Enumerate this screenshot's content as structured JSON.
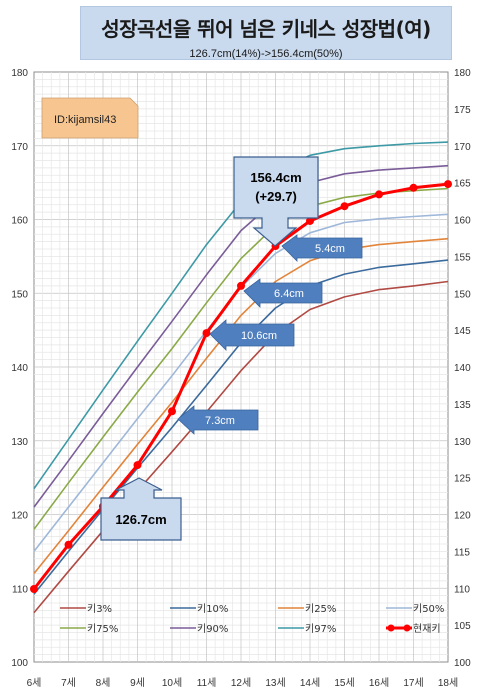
{
  "title": "성장곡선을 뛰어 넘은 키네스 성장법(여)",
  "subtitle": "126.7cm(14%)->156.4cm(50%)",
  "id_label": "ID:kijamsil43",
  "start_label": "126.7cm",
  "end_label_line1": "156.4cm",
  "end_label_line2": "(+29.7)",
  "gains": [
    "7.3cm",
    "10.6cm",
    "6.4cm",
    "5.4cm"
  ],
  "colors": {
    "p3": "#b04a43",
    "p10": "#3b6a9c",
    "p25": "#e2843a",
    "p50": "#9fb7d9",
    "p75": "#8aaa48",
    "p90": "#7a5c98",
    "p97": "#3c99a5",
    "current": "#ff0000"
  },
  "chart_data": {
    "type": "line",
    "categories": [
      "6세",
      "7세",
      "8세",
      "9세",
      "10세",
      "11세",
      "12세",
      "13세",
      "14세",
      "15세",
      "16세",
      "17세",
      "18세"
    ],
    "ylim": [
      100,
      180
    ],
    "y_ticks": [
      "100",
      "110",
      "120",
      "130",
      "140",
      "150",
      "160",
      "170",
      "180"
    ],
    "y2_ticks": [
      "100",
      "105",
      "110",
      "115",
      "120",
      "125",
      "130",
      "135",
      "140",
      "145",
      "150",
      "155",
      "160",
      "165",
      "170",
      "175",
      "180"
    ],
    "grid": true,
    "legend_position": "bottom",
    "series": [
      {
        "name": "키3%",
        "values": [
          106.7,
          112.3,
          117.8,
          123.2,
          128.5,
          133.9,
          139.5,
          144.5,
          147.8,
          149.5,
          150.5,
          151.0,
          151.6
        ]
      },
      {
        "name": "키10%",
        "values": [
          109.2,
          115.0,
          120.7,
          126.3,
          131.8,
          137.5,
          143.3,
          148.0,
          151.0,
          152.6,
          153.5,
          154.0,
          154.5
        ]
      },
      {
        "name": "키25%",
        "values": [
          112.0,
          117.8,
          123.7,
          129.5,
          135.2,
          141.2,
          147.0,
          151.6,
          154.4,
          155.9,
          156.6,
          157.0,
          157.4
        ]
      },
      {
        "name": "키50%",
        "values": [
          115.0,
          121.0,
          127.0,
          133.0,
          138.8,
          144.9,
          150.8,
          155.4,
          158.2,
          159.6,
          160.1,
          160.4,
          160.7
        ]
      },
      {
        "name": "키75%",
        "values": [
          118.0,
          124.3,
          130.5,
          136.6,
          142.5,
          148.7,
          154.7,
          159.2,
          161.8,
          163.0,
          163.6,
          163.9,
          164.2
        ]
      },
      {
        "name": "키90%",
        "values": [
          121.0,
          127.3,
          133.7,
          140.0,
          146.2,
          152.5,
          158.5,
          162.6,
          165.0,
          166.2,
          166.7,
          167.0,
          167.3
        ]
      },
      {
        "name": "키97%",
        "values": [
          123.5,
          130.2,
          136.9,
          143.5,
          150.0,
          156.6,
          162.4,
          166.5,
          168.7,
          169.6,
          170.0,
          170.3,
          170.5
        ]
      },
      {
        "name": "현재키",
        "values": [
          109.9,
          115.9,
          121.1,
          126.7,
          134.0,
          144.6,
          151.0,
          156.4,
          159.8,
          161.8,
          163.4,
          164.3,
          164.8
        ]
      }
    ]
  }
}
